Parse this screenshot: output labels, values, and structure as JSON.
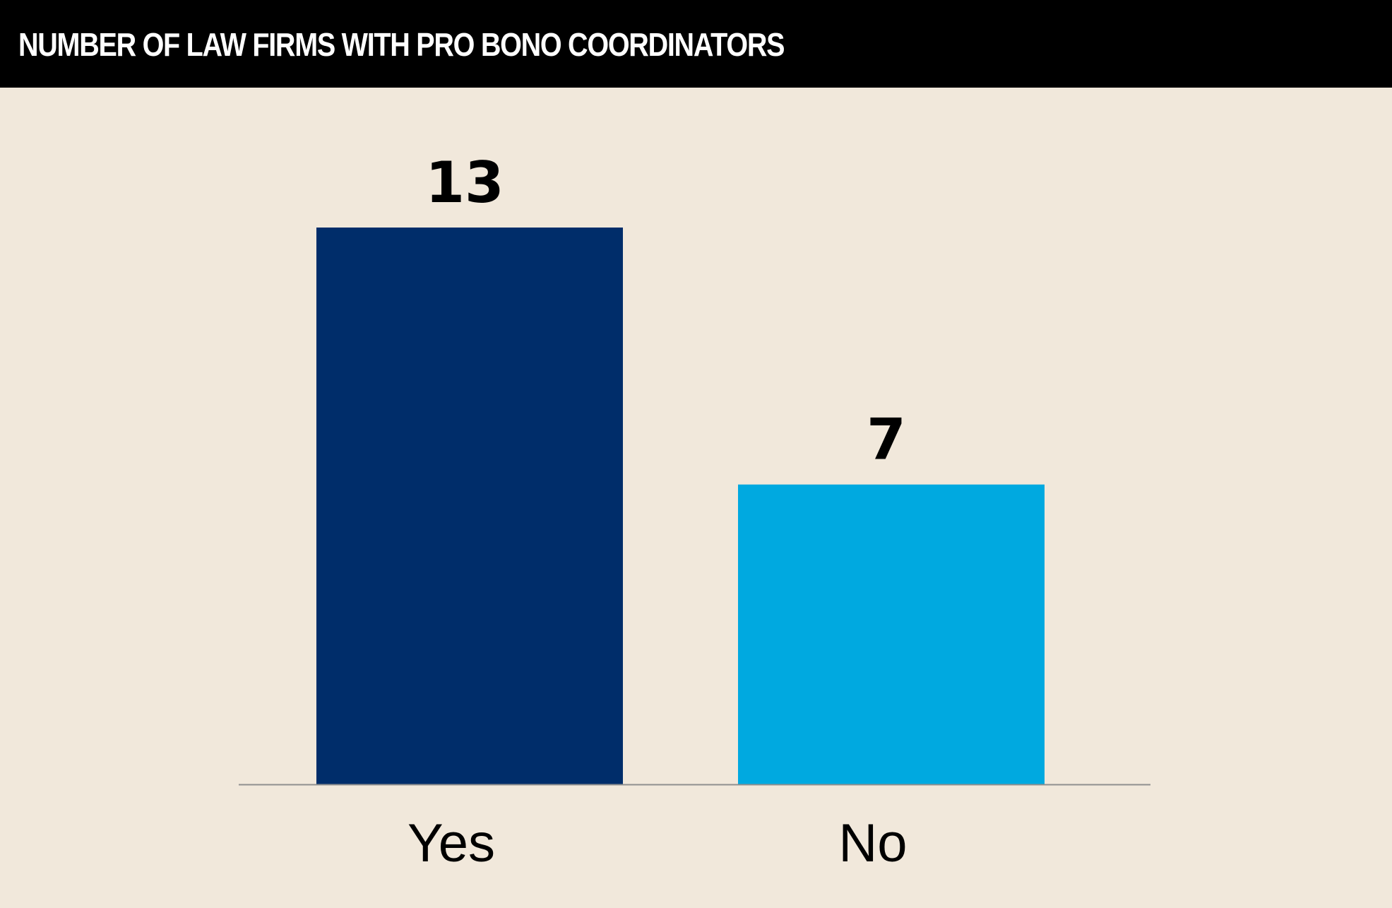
{
  "header": {
    "title": "NUMBER OF LAW FIRMS WITH PRO BONO COORDINATORS"
  },
  "colors": {
    "background": "#f1e8db",
    "header_background": "#000000",
    "yes_bar": "#002d6a",
    "no_bar": "#00a9e0",
    "axis_line": "#8f8f8f"
  },
  "chart_data": {
    "type": "bar",
    "title": "NUMBER OF LAW FIRMS WITH PRO BONO COORDINATORS",
    "categories": [
      "Yes",
      "No"
    ],
    "values": [
      13,
      7
    ],
    "data_labels": [
      "13",
      "7"
    ],
    "xlabel": "",
    "ylabel": "",
    "ylim": [
      0,
      13
    ],
    "grid": false,
    "legend": "none"
  }
}
